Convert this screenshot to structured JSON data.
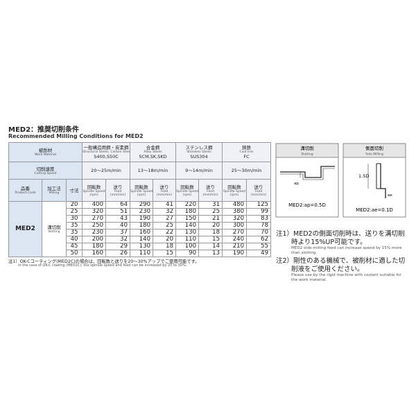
{
  "header": {
    "title": "MED2：推奨切削条件",
    "subtitle": "Recommended Milling Conditions for MED2"
  },
  "table": {
    "work_material": {
      "ja": "被削材",
      "en": "Work Material"
    },
    "cutting_speed": {
      "ja": "切削速度",
      "en": "Cutting Speed"
    },
    "materials": [
      {
        "name": "一般構造用鋼・炭素鋼",
        "name_en": "Structural Steels, Carbon Steels",
        "grade": "S400,S50C",
        "speed": "20〜25m/min"
      },
      {
        "name": "合金鋼",
        "name_en": "Alloy Steels",
        "grade": "SCM,SK,SKD",
        "speed": "13〜18m/min"
      },
      {
        "name": "ステンレス鋼",
        "name_en": "Stainless Steels",
        "grade": "SUS304",
        "speed": "9〜14m/min"
      },
      {
        "name": "鋳鉄",
        "name_en": "Cast Iron",
        "grade": "FC",
        "speed": "25〜30m/min"
      }
    ],
    "columns": {
      "product_code": {
        "ja": "品番",
        "en": "Product Code"
      },
      "milling": {
        "ja": "加工法",
        "en": "Milling"
      },
      "size": {
        "ja": "寸法"
      },
      "spindle": {
        "ja": "回転数",
        "en": "Spindle Speed",
        "unit": "(rpm)"
      },
      "feed": {
        "ja": "送り",
        "en": "Feed",
        "unit": "(mm/min)"
      }
    },
    "product": "MED2",
    "milling": {
      "ja": "溝切削",
      "en": "Slotting"
    },
    "rows": [
      [
        20,
        400,
        64,
        290,
        41,
        220,
        31,
        480,
        125
      ],
      [
        25,
        320,
        51,
        230,
        32,
        180,
        25,
        380,
        99
      ],
      [
        30,
        270,
        43,
        190,
        27,
        150,
        21,
        320,
        83
      ],
      [
        35,
        250,
        40,
        180,
        25,
        140,
        20,
        300,
        78
      ],
      [
        35,
        230,
        37,
        160,
        22,
        130,
        18,
        270,
        70
      ],
      [
        40,
        200,
        32,
        140,
        20,
        110,
        15,
        240,
        62
      ],
      [
        45,
        180,
        29,
        130,
        18,
        100,
        14,
        210,
        55
      ],
      [
        50,
        160,
        26,
        110,
        15,
        90,
        13,
        190,
        49
      ]
    ]
  },
  "footnote": {
    "ja": "注1）OK-Cコーティング(MED2C)の場合は、回転数と送りを20〜30%アップでご使用可能です。",
    "en": "In the case of OK-C coating (MED2C), the spindle speed and feed can be increased by 20 to 30%."
  },
  "diagrams": [
    {
      "title": "溝切削",
      "title_en": "Slotting",
      "label": "ap",
      "formula": "MED2:ap=0.5D"
    },
    {
      "title": "側面切削",
      "title_en": "Side Milling",
      "depth": "1.5D",
      "label": "ae",
      "formula": "MED2:ae=0.1D"
    }
  ],
  "notes": [
    {
      "ja": "注1）MED2の側面切削時は、送りを溝切削時より15%UP可能です。",
      "en": "MED2 side-milling feed can increase speed by 15% more than slotting."
    },
    {
      "ja": "注2）剛性のある機械で、被削材に適した切削液をご使用ください。",
      "en": "Please use by the rigid machine with coolant suitable for the work material."
    }
  ]
}
